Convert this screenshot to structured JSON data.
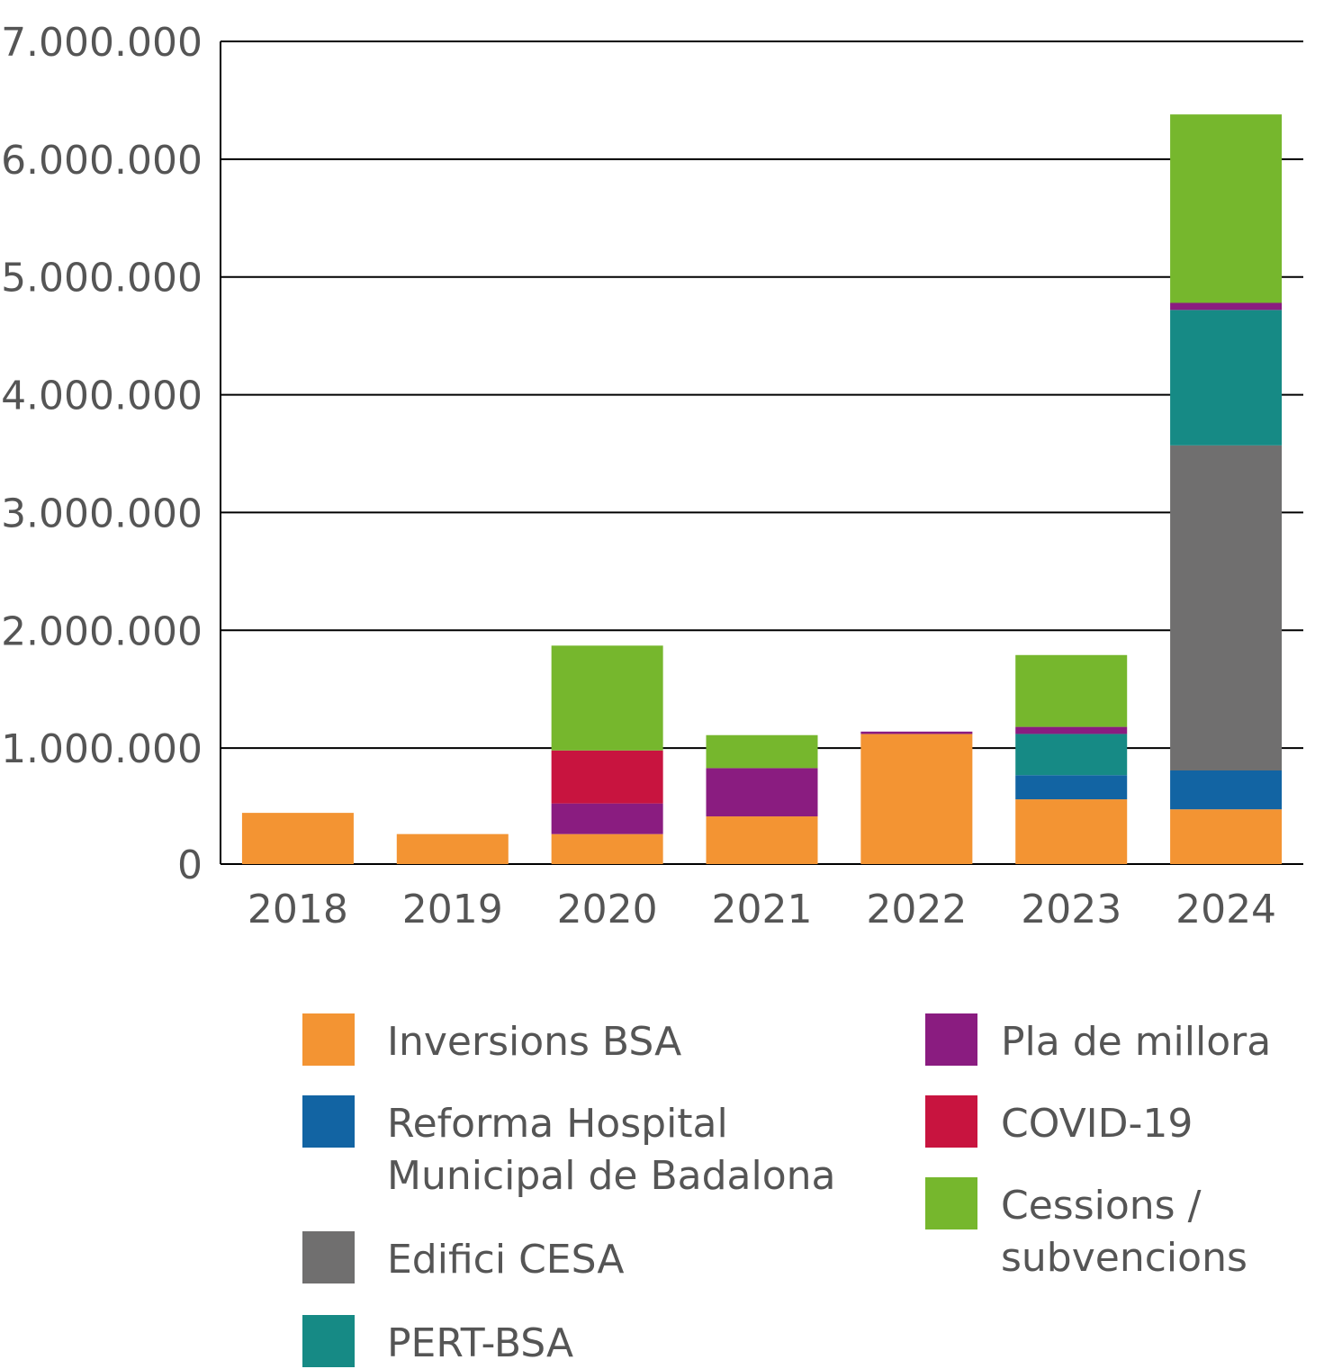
{
  "chart_data": {
    "type": "bar",
    "stacked": true,
    "title": "",
    "xlabel": "",
    "ylabel": "",
    "ylim": [
      0,
      7000000
    ],
    "yticks": [
      0,
      1000000,
      2000000,
      3000000,
      4000000,
      5000000,
      6000000,
      7000000
    ],
    "ytick_labels": [
      "0",
      "1.000.000",
      "2.000.000",
      "3.000.000",
      "4.000.000",
      "5.000.000",
      "6.000.000",
      "7.000.000"
    ],
    "grid": true,
    "legend_placement": "bottom",
    "categories": [
      "2018",
      "2019",
      "2020",
      "2021",
      "2022",
      "2023",
      "2024"
    ],
    "series": [
      {
        "name": "Inversions BSA",
        "color": "#F39433",
        "values": [
          450000,
          270000,
          270000,
          420000,
          1120000,
          565000,
          480000
        ]
      },
      {
        "name": "Reforma Hospital Municipal de Badalona",
        "legend_lines": [
          "Reforma Hospital",
          "Municipal de Badalona"
        ],
        "color": "#1264A3",
        "values": [
          0,
          0,
          0,
          0,
          0,
          205000,
          330000
        ]
      },
      {
        "name": "Edifici CESA",
        "color": "#706F6F",
        "values": [
          0,
          0,
          0,
          0,
          0,
          0,
          2760000
        ]
      },
      {
        "name": "PERT-BSA",
        "color": "#168A85",
        "values": [
          0,
          0,
          0,
          0,
          0,
          350000,
          1150000
        ]
      },
      {
        "name": "Pla de millora",
        "color": "#8A1C80",
        "values": [
          0,
          0,
          260000,
          410000,
          20000,
          60000,
          60000
        ]
      },
      {
        "name": "COVID-19",
        "color": "#C8143F",
        "values": [
          0,
          0,
          450000,
          0,
          0,
          0,
          0
        ]
      },
      {
        "name": "Cessions / subvencions",
        "legend_lines": [
          "Cessions  /",
          "subvencions"
        ],
        "color": "#76B72D",
        "values": [
          0,
          0,
          890000,
          280000,
          0,
          610000,
          1600000
        ]
      }
    ]
  }
}
